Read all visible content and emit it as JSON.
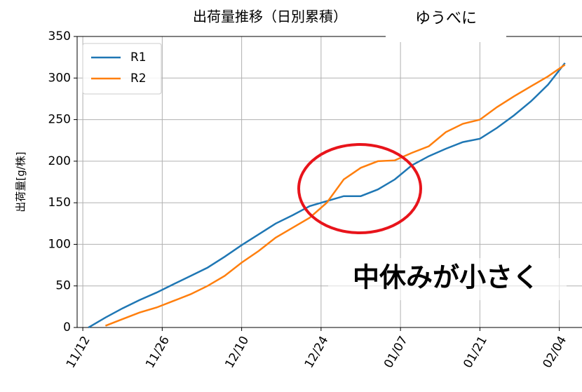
{
  "chart_data": {
    "type": "line",
    "title": "出荷量推移（日別累積）",
    "annotations": [
      "ゆうべに",
      "中休みが小さく"
    ],
    "ylabel": "出荷量[g/株]",
    "x": [
      "11/13",
      "11/16",
      "11/19",
      "11/22",
      "11/25",
      "11/28",
      "12/01",
      "12/04",
      "12/07",
      "12/10",
      "12/13",
      "12/16",
      "12/19",
      "12/22",
      "12/25",
      "12/28",
      "12/31",
      "01/03",
      "01/06",
      "01/09",
      "01/12",
      "01/15",
      "01/18",
      "01/21",
      "01/24",
      "01/27",
      "01/30",
      "02/02",
      "02/05"
    ],
    "series": [
      {
        "name": "R1",
        "color": "#1f77b4",
        "values": [
          0,
          12,
          23,
          33,
          42,
          52,
          62,
          72,
          85,
          99,
          112,
          125,
          135,
          146,
          152,
          158,
          158,
          166,
          178,
          195,
          206,
          215,
          223,
          227,
          240,
          255,
          272,
          292,
          318
        ]
      },
      {
        "name": "R2",
        "color": "#ff7f0e",
        "values": [
          null,
          2,
          10,
          18,
          24,
          32,
          40,
          50,
          62,
          78,
          92,
          108,
          120,
          132,
          150,
          178,
          192,
          200,
          201,
          210,
          218,
          235,
          245,
          250,
          265,
          278,
          290,
          302,
          316
        ]
      }
    ],
    "xlim": [
      "11/11",
      "02/08"
    ],
    "xticks": [
      "11/12",
      "11/26",
      "12/10",
      "12/24",
      "01/07",
      "01/21",
      "02/04"
    ],
    "ylim": [
      0,
      350
    ],
    "yticks": [
      0,
      50,
      100,
      150,
      200,
      250,
      300,
      350
    ],
    "grid": true,
    "legend": "upper-left"
  }
}
